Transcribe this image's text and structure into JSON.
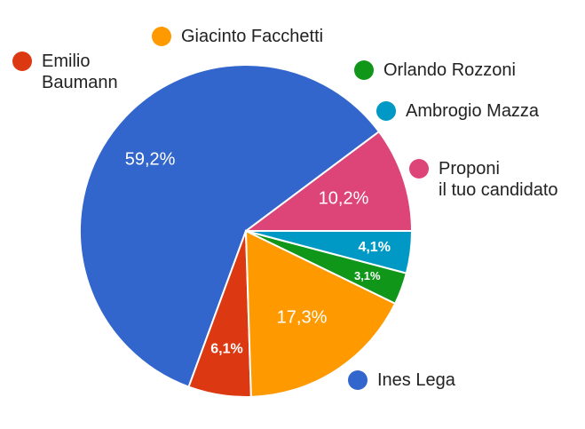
{
  "chart_data": {
    "type": "pie",
    "slices": [
      {
        "label": "Proponi il tuo candidato",
        "label_lines": [
          "Proponi",
          "il tuo candidato"
        ],
        "value": 10.2,
        "value_label": "10,2%",
        "color": "#dd4477"
      },
      {
        "label": "Ines Lega",
        "label_lines": [
          "Ines Lega"
        ],
        "value": 59.2,
        "value_label": "59,2%",
        "color": "#3366cc"
      },
      {
        "label": "Emilio Baumann",
        "label_lines": [
          "Emilio",
          "Baumann"
        ],
        "value": 6.1,
        "value_label": "6,1%",
        "color": "#dc3912"
      },
      {
        "label": "Giacinto Facchetti",
        "label_lines": [
          "Giacinto Facchetti"
        ],
        "value": 17.3,
        "value_label": "17,3%",
        "color": "#ff9900"
      },
      {
        "label": "Orlando Rozzoni",
        "label_lines": [
          "Orlando Rozzoni"
        ],
        "value": 3.1,
        "value_label": "3,1%",
        "color": "#109618"
      },
      {
        "label": "Ambrogio Mazza",
        "label_lines": [
          "Ambrogio Mazza"
        ],
        "value": 4.1,
        "value_label": "4,1%",
        "color": "#0099c6"
      }
    ],
    "start_angle_deg": 0,
    "direction": "clockwise-from-3-oclock",
    "legend": "labels-around"
  }
}
